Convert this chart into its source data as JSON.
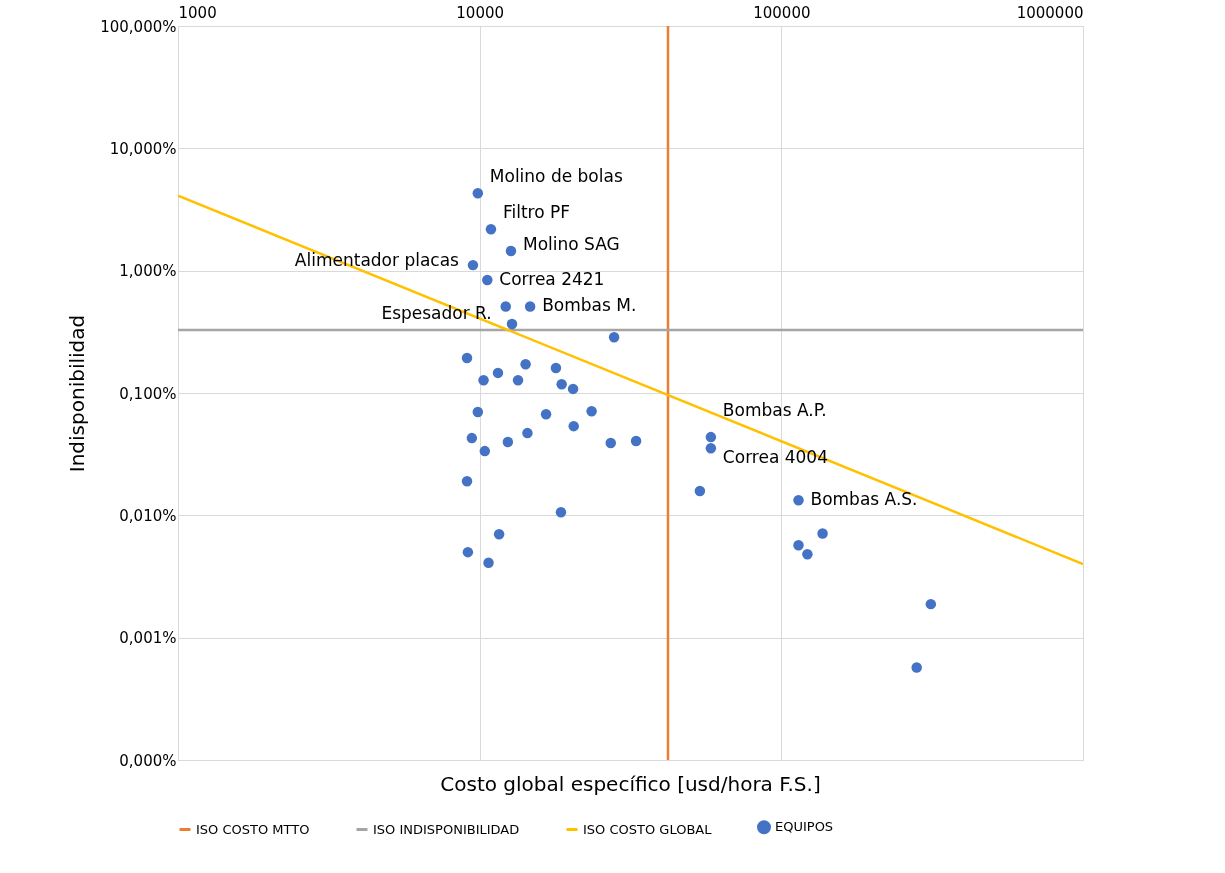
{
  "chart_data": {
    "type": "scatter",
    "xlabel": "Costo global específico [usd/hora F.S.]",
    "ylabel": "Indisponibilidad",
    "log": "xy",
    "grid": true,
    "legend": "bottom",
    "xlim": [
      1000,
      1000000
    ],
    "xticks": [
      1000,
      10000,
      100000,
      1000000
    ],
    "ylim": [
      0.0001,
      100
    ],
    "yticks": [
      {
        "value": 0.0001,
        "label": "0,000%"
      },
      {
        "value": 0.001,
        "label": "0,001%"
      },
      {
        "value": 0.01,
        "label": "0,010%"
      },
      {
        "value": 0.1,
        "label": "0,100%"
      },
      {
        "value": 1,
        "label": "1,000%"
      },
      {
        "value": 10,
        "label": "10,000%"
      },
      {
        "value": 100,
        "label": "100,000%"
      }
    ],
    "ref_lines": [
      {
        "axis": "x",
        "value": 42100,
        "label": "ISO COSTO MTTO",
        "color": "#ed7d31"
      },
      {
        "axis": "y",
        "value": 0.327,
        "label": "ISO INDISPONIBILIDAD",
        "color": "#a5a5a5"
      }
    ],
    "series": [
      {
        "name": "ISO COSTO GLOBAL",
        "type": "line",
        "line_style": "solid",
        "marker": "none",
        "color": "#ffc000",
        "x": [
          1000,
          1000000
        ],
        "values": [
          4.1,
          0.004
        ]
      },
      {
        "name": "EQUIPOS",
        "marker": "circle",
        "color": "#4472c4",
        "x": [
          9860,
          10900,
          12700,
          9500,
          10600,
          12200,
          14700,
          12800,
          27900,
          9080,
          11500,
          10300,
          14200,
          13400,
          17900,
          18700,
          20400,
          9860,
          16600,
          23500,
          9420,
          14400,
          20500,
          12400,
          27200,
          33000,
          10400,
          9080,
          18600,
          11600,
          9140,
          10700,
          58400,
          58400,
          53700,
          114000,
          114000,
          137000,
          122000,
          313000,
          281000
        ],
        "values": [
          4.3,
          2.18,
          1.45,
          1.11,
          0.84,
          0.51,
          0.51,
          0.366,
          0.286,
          0.193,
          0.146,
          0.127,
          0.172,
          0.127,
          0.16,
          0.118,
          0.108,
          0.07,
          0.067,
          0.071,
          0.0428,
          0.047,
          0.0536,
          0.0397,
          0.039,
          0.0405,
          0.0335,
          0.019,
          0.0106,
          0.007,
          0.005,
          0.0041,
          0.0436,
          0.0354,
          0.0158,
          0.0133,
          0.0057,
          0.0071,
          0.0048,
          0.00188,
          0.00057
        ]
      }
    ],
    "annotations": [
      {
        "text": "Molino de bolas",
        "x": 9860,
        "y": 4.3
      },
      {
        "text": "Filtro PF",
        "x": 10900,
        "y": 2.18
      },
      {
        "text": "Molino SAG",
        "x": 12700,
        "y": 1.45
      },
      {
        "text": "Alimentador placas",
        "x": 9500,
        "y": 1.11
      },
      {
        "text": "Correa 2421",
        "x": 10600,
        "y": 0.84
      },
      {
        "text": "Espesador R.",
        "x": 12200,
        "y": 0.51
      },
      {
        "text": "Bombas M.",
        "x": 14700,
        "y": 0.51
      },
      {
        "text": "Bombas A.P.",
        "x": 58400,
        "y": 0.0436
      },
      {
        "text": "Correa 4004",
        "x": 58400,
        "y": 0.0354
      },
      {
        "text": "Bombas A.S.",
        "x": 114000,
        "y": 0.0133
      }
    ]
  }
}
